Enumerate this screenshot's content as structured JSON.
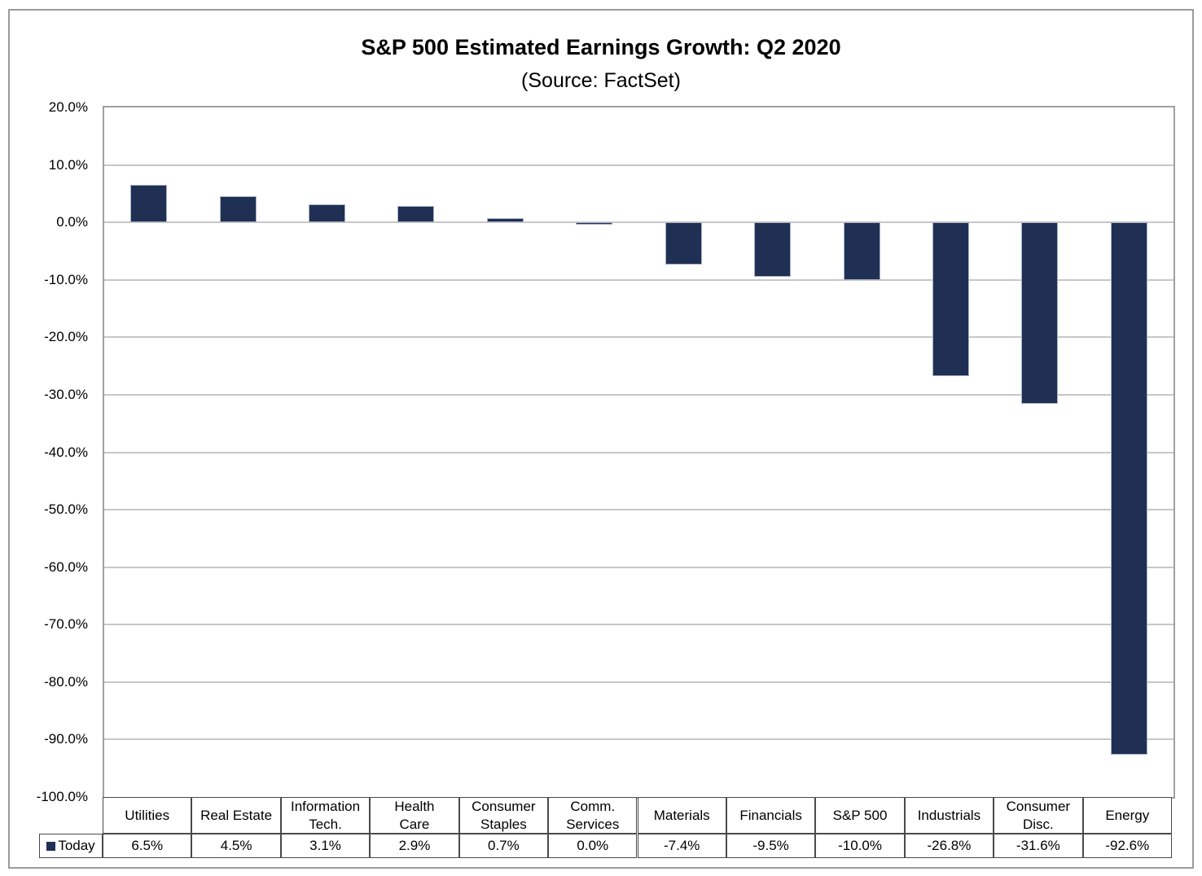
{
  "title": "S&P 500 Estimated Earnings Growth: Q2 2020",
  "subtitle": "(Source: FactSet)",
  "legend": {
    "label": "Today"
  },
  "colors": {
    "bar_fill": "#1f3054",
    "bar_border": "#a9b1c4",
    "gridline": "#c7c7c7",
    "plot_border": "#a0a0a0",
    "table_border": "#4a4a4a",
    "text": "#000000"
  },
  "chart_data": {
    "type": "bar",
    "title": "S&P 500 Estimated Earnings Growth: Q2 2020",
    "subtitle": "(Source: FactSet)",
    "categories": [
      "Utilities",
      "Real Estate",
      "Information Tech.",
      "Health Care",
      "Consumer Staples",
      "Comm. Services",
      "Materials",
      "Financials",
      "S&P 500",
      "Industrials",
      "Consumer Disc.",
      "Energy"
    ],
    "category_labels": [
      "Utilities",
      "Real Estate",
      "Information\nTech.",
      "Health\nCare",
      "Consumer\nStaples",
      "Comm.\nServices",
      "Materials",
      "Financials",
      "S&P 500",
      "Industrials",
      "Consumer\nDisc.",
      "Energy"
    ],
    "series": [
      {
        "name": "Today",
        "values": [
          6.5,
          4.5,
          3.1,
          2.9,
          0.7,
          0.0,
          -7.4,
          -9.5,
          -10.0,
          -26.8,
          -31.6,
          -92.6
        ]
      }
    ],
    "value_labels": [
      "6.5%",
      "4.5%",
      "3.1%",
      "2.9%",
      "0.7%",
      "0.0%",
      "-7.4%",
      "-9.5%",
      "-10.0%",
      "-26.8%",
      "-31.6%",
      "-92.6%"
    ],
    "xlabel": "",
    "ylabel": "",
    "ylim": [
      -100,
      20
    ],
    "ytick_step": 10,
    "ytick_labels": [
      "20.0%",
      "10.0%",
      "0.0%",
      "-10.0%",
      "-20.0%",
      "-30.0%",
      "-40.0%",
      "-50.0%",
      "-60.0%",
      "-70.0%",
      "-80.0%",
      "-90.0%",
      "-100.0%"
    ],
    "grid": true,
    "legend_position": "bottom-table-left"
  }
}
